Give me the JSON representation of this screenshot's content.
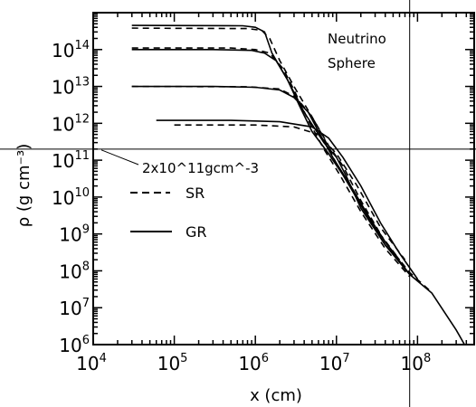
{
  "chart_data": {
    "type": "line",
    "xlabel": "x (cm)",
    "ylabel": "ρ (g cm⁻³)",
    "xscale": "log",
    "yscale": "log",
    "xlim": [
      10000,
      500000000
    ],
    "ylim": [
      1000000,
      1000000000000000
    ],
    "x_ticks": [
      {
        "base": "10",
        "exp": "4"
      },
      {
        "base": "10",
        "exp": "5"
      },
      {
        "base": "10",
        "exp": "6"
      },
      {
        "base": "10",
        "exp": "7"
      },
      {
        "base": "10",
        "exp": "8"
      }
    ],
    "y_ticks": [
      {
        "base": "10",
        "exp": "6"
      },
      {
        "base": "10",
        "exp": "7"
      },
      {
        "base": "10",
        "exp": "8"
      },
      {
        "base": "10",
        "exp": "9"
      },
      {
        "base": "10",
        "exp": "10"
      },
      {
        "base": "10",
        "exp": "11"
      },
      {
        "base": "10",
        "exp": "12"
      },
      {
        "base": "10",
        "exp": "13"
      },
      {
        "base": "10",
        "exp": "14"
      }
    ],
    "annotations": {
      "neutrino_sphere_line1": "Neutrino",
      "neutrino_sphere_line2": "Sphere",
      "density_marker": "2x10^11gcm^-3",
      "density_marker_value": 200000000000,
      "neutrino_sphere_x": 80000000
    },
    "legend": [
      {
        "label": "SR",
        "style": "dashed"
      },
      {
        "label": "GR",
        "style": "solid"
      }
    ],
    "series": [
      {
        "style": "solid",
        "points": [
          [
            30000,
            450000000000000.0
          ],
          [
            700000,
            440000000000000.0
          ],
          [
            1000000,
            400000000000000.0
          ],
          [
            1300000,
            300000000000000.0
          ],
          [
            1600000,
            80000000000000.0
          ],
          [
            2500000,
            15000000000000.0
          ],
          [
            4000000,
            2000000000000.0
          ],
          [
            7000000,
            300000000000.0
          ],
          [
            10000000,
            120000000000.0
          ],
          [
            13000000,
            40000000000.0
          ],
          [
            20000000,
            5000000000.0
          ],
          [
            40000000,
            500000000.0
          ],
          [
            80000000,
            80000000.0
          ],
          [
            150000000,
            25000000.0
          ],
          [
            300000000,
            2500000.0
          ],
          [
            380000000,
            1000000.0
          ]
        ]
      },
      {
        "style": "dashed",
        "points": [
          [
            30000,
            380000000000000.0
          ],
          [
            800000,
            370000000000000.0
          ],
          [
            1200000,
            330000000000000.0
          ],
          [
            1500000,
            200000000000000.0
          ],
          [
            2000000,
            50000000000000.0
          ],
          [
            3000000,
            10000000000000.0
          ],
          [
            5000000,
            1500000000000.0
          ],
          [
            8000000,
            250000000000.0
          ],
          [
            12000000,
            70000000000.0
          ],
          [
            20000000,
            8000000000.0
          ],
          [
            40000000,
            600000000.0
          ],
          [
            80000000,
            90000000.0
          ],
          [
            150000000,
            26000000.0
          ]
        ]
      },
      {
        "style": "solid",
        "points": [
          [
            30000,
            100000000000000.0
          ],
          [
            300000,
            100000000000000.0
          ],
          [
            900000,
            95000000000000.0
          ],
          [
            1300000,
            80000000000000.0
          ],
          [
            1800000,
            50000000000000.0
          ],
          [
            2500000,
            15000000000000.0
          ],
          [
            3500000,
            3000000000000.0
          ],
          [
            5000000,
            600000000000.0
          ],
          [
            8000000,
            150000000000.0
          ],
          [
            12000000,
            40000000000.0
          ],
          [
            20000000,
            6000000000.0
          ],
          [
            40000000,
            500000000.0
          ],
          [
            80000000,
            80000000.0
          ]
        ]
      },
      {
        "style": "dashed",
        "points": [
          [
            30000,
            110000000000000.0
          ],
          [
            500000,
            110000000000000.0
          ],
          [
            1000000,
            100000000000000.0
          ],
          [
            1500000,
            80000000000000.0
          ],
          [
            2200000,
            30000000000000.0
          ],
          [
            3000000,
            8000000000000.0
          ],
          [
            4500000,
            1200000000000.0
          ],
          [
            7000000,
            200000000000.0
          ],
          [
            11000000,
            40000000000.0
          ],
          [
            20000000,
            4000000000.0
          ],
          [
            40000000,
            400000000.0
          ],
          [
            80000000,
            70000000.0
          ]
        ]
      },
      {
        "style": "solid",
        "points": [
          [
            30000,
            10000000000000.0
          ],
          [
            300000,
            10000000000000.0
          ],
          [
            1000000,
            9500000000000.0
          ],
          [
            2000000,
            8000000000000.0
          ],
          [
            3000000,
            5000000000000.0
          ],
          [
            4500000,
            2000000000000.0
          ],
          [
            6000000,
            600000000000.0
          ],
          [
            9000000,
            120000000000.0
          ],
          [
            15000000,
            20000000000.0
          ],
          [
            25000000,
            3000000000.0
          ],
          [
            40000000,
            600000000.0
          ],
          [
            80000000,
            80000000.0
          ]
        ]
      },
      {
        "style": "dashed",
        "points": [
          [
            30000,
            10000000000000.0
          ],
          [
            800000,
            9800000000000.0
          ],
          [
            2000000,
            8500000000000.0
          ],
          [
            3200000,
            5000000000000.0
          ],
          [
            5000000,
            1500000000000.0
          ],
          [
            7000000,
            400000000000.0
          ],
          [
            10000000,
            80000000000.0
          ],
          [
            16000000,
            15000000000.0
          ],
          [
            30000000,
            1500000000.0
          ],
          [
            60000000,
            200000000.0
          ]
        ]
      },
      {
        "style": "solid",
        "points": [
          [
            60000,
            1200000000000.0
          ],
          [
            500000,
            1200000000000.0
          ],
          [
            2000000,
            1100000000000.0
          ],
          [
            5000000,
            800000000000.0
          ],
          [
            8000000,
            400000000000.0
          ],
          [
            12000000,
            120000000000.0
          ],
          [
            20000000,
            20000000000.0
          ],
          [
            35000000,
            2000000000.0
          ],
          [
            60000000,
            300000000.0
          ],
          [
            100000000,
            60000000.0
          ]
        ]
      },
      {
        "style": "dashed",
        "points": [
          [
            100000,
            900000000000.0
          ],
          [
            1000000,
            900000000000.0
          ],
          [
            3000000,
            800000000000.0
          ],
          [
            6000000,
            500000000000.0
          ],
          [
            10000000,
            150000000000.0
          ],
          [
            18000000,
            20000000000.0
          ],
          [
            35000000,
            1500000000.0
          ],
          [
            70000000,
            200000000.0
          ]
        ]
      }
    ]
  }
}
